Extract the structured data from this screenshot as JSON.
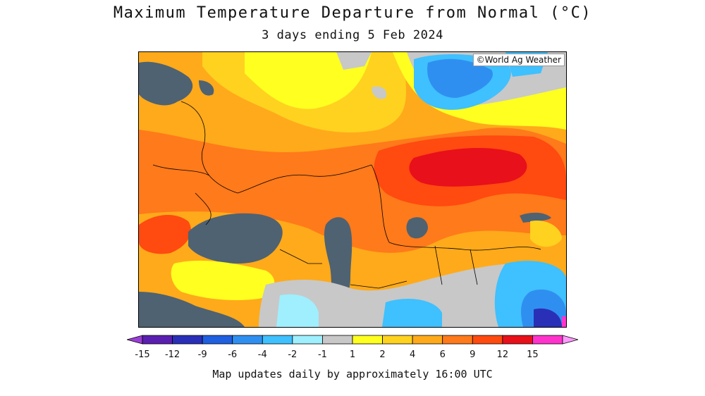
{
  "title": "Maximum Temperature Departure from Normal (°C)",
  "subtitle": "3 days ending 5 Feb 2024",
  "credit": "©World Ag Weather",
  "footnote": "Map updates daily by approximately 16:00 UTC",
  "legend": {
    "unit": "°C",
    "ticks": [
      "-15",
      "-12",
      "-9",
      "-6",
      "-4",
      "-2",
      "-1",
      "1",
      "2",
      "4",
      "6",
      "9",
      "12",
      "15"
    ],
    "colors": [
      "#9a3fd6",
      "#5a1fb0",
      "#2a2fb8",
      "#1f5fe0",
      "#2f8ff0",
      "#3fc0ff",
      "#9fefff",
      "#c8c8c8",
      "#ffff20",
      "#ffd21f",
      "#ffaa1a",
      "#ff7a1a",
      "#ff4a10",
      "#e8101a",
      "#ff33cc",
      "#ff99ff"
    ]
  },
  "regions": {
    "sea": "#4e6272",
    "gray_neutral": "#c8c8c8"
  }
}
